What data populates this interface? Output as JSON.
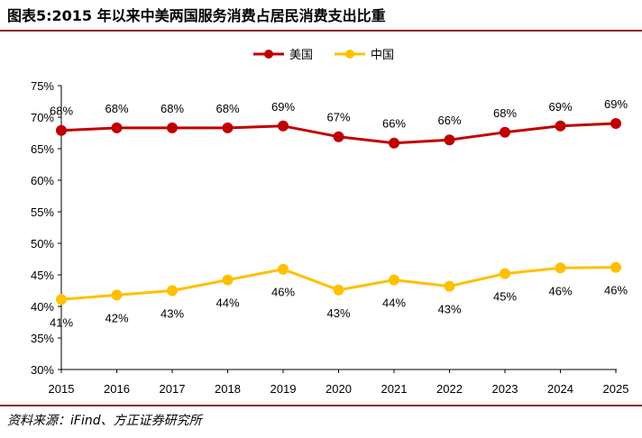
{
  "header": {
    "title": "图表5:2015 年以来中美两国服务消费占居民消费支出比重"
  },
  "footer": {
    "source": "资料来源：iFind、方正证券研究所"
  },
  "colors": {
    "us": "#C00000",
    "china": "#FFC000",
    "rule": "#8c2a2a",
    "axis": "#000000"
  },
  "chart_data": {
    "type": "line",
    "title": "2015 年以来中美两国服务消费占居民消费支出比重",
    "xlabel": "",
    "ylabel": "",
    "x": [
      "2015",
      "2016",
      "2017",
      "2018",
      "2019",
      "2020",
      "2021",
      "2022",
      "2023",
      "2024",
      "2025"
    ],
    "ylim": [
      30,
      75
    ],
    "yticks": [
      30,
      35,
      40,
      45,
      50,
      55,
      60,
      65,
      70,
      75
    ],
    "ytick_labels": [
      "30%",
      "35%",
      "40%",
      "45%",
      "50%",
      "55%",
      "60%",
      "65%",
      "70%",
      "75%"
    ],
    "grid": false,
    "legend_position": "top-center",
    "series": [
      {
        "name": "美国",
        "values": [
          67.9,
          68.3,
          68.3,
          68.3,
          68.6,
          66.9,
          65.9,
          66.4,
          67.6,
          68.6,
          69.0
        ],
        "labels": [
          "68%",
          "68%",
          "68%",
          "68%",
          "69%",
          "67%",
          "66%",
          "66%",
          "68%",
          "69%",
          "69%"
        ],
        "label_position": "above"
      },
      {
        "name": "中国",
        "values": [
          41.1,
          41.8,
          42.5,
          44.2,
          45.9,
          42.6,
          44.2,
          43.2,
          45.2,
          46.1,
          46.2
        ],
        "labels": [
          "41%",
          "42%",
          "43%",
          "44%",
          "46%",
          "43%",
          "44%",
          "43%",
          "45%",
          "46%",
          "46%"
        ],
        "label_position": "below"
      }
    ]
  }
}
